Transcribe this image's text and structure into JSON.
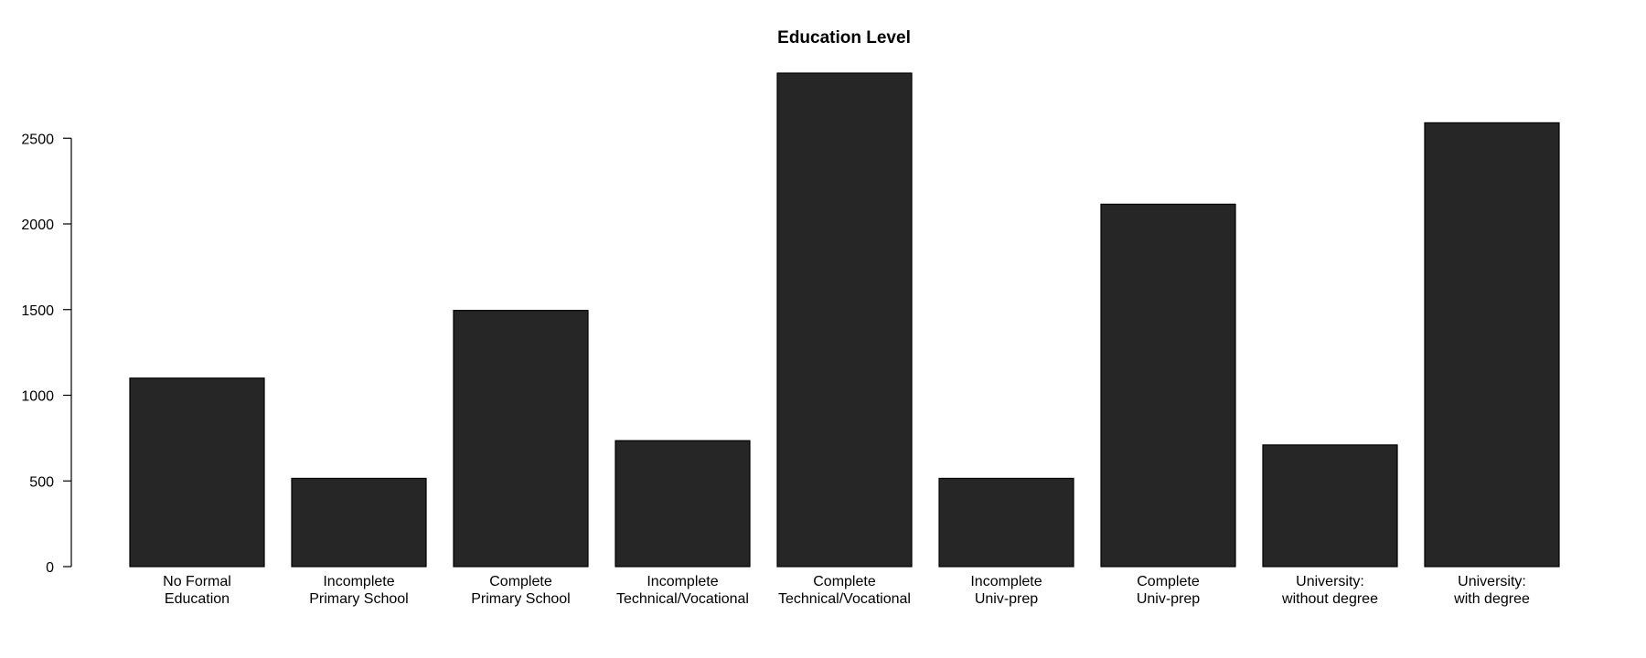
{
  "chart_data": {
    "type": "bar",
    "title": "Education Level",
    "xlabel": "",
    "ylabel": "",
    "categories": [
      [
        "No Formal",
        "Education"
      ],
      [
        "Incomplete",
        "Primary School"
      ],
      [
        "Complete",
        "Primary School"
      ],
      [
        "Incomplete",
        "Technical/Vocational"
      ],
      [
        "Complete",
        "Technical/Vocational"
      ],
      [
        "Incomplete",
        "Univ-prep"
      ],
      [
        "Complete",
        "Univ-prep"
      ],
      [
        "University:",
        "without degree"
      ],
      [
        "University:",
        "with degree"
      ]
    ],
    "values": [
      1100,
      515,
      1495,
      735,
      2880,
      515,
      2115,
      710,
      2590
    ],
    "y_ticks": [
      "0",
      "500",
      "1000",
      "1500",
      "2000",
      "2500"
    ],
    "ylim": [
      0,
      2880
    ],
    "grid": false,
    "legend": "none",
    "bar_color": "#262626",
    "bar_edge_color": "#000000"
  }
}
